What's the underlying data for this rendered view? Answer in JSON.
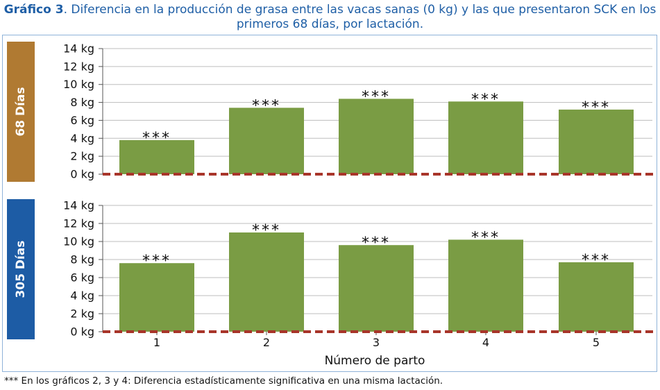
{
  "title": {
    "lead": "Gráfico 3",
    "text": ". Diferencia en la producción de grasa entre las vacas sanas (0 kg) y las que presentaron SCK en los primeros 68 días, por lactación."
  },
  "footnote": "*** En los gráficos 2, 3 y 4: Diferencia estadísticamente significativa en una misma lactación.",
  "colors": {
    "bar": "#7a9c44",
    "reference_line": "#a8352a",
    "panel_68": "#b07a32",
    "panel_305": "#1d5ca5",
    "title": "#1f5fa6"
  },
  "chart_data": [
    {
      "type": "bar",
      "panel_label": "68 Días",
      "categories": [
        "1",
        "2",
        "3",
        "4",
        "5"
      ],
      "values": [
        3.8,
        7.4,
        8.4,
        8.1,
        7.2
      ],
      "annotations": [
        "***",
        "***",
        "***",
        "***",
        "***"
      ],
      "yticks": [
        "0 kg",
        "2 kg",
        "4 kg",
        "6 kg",
        "8 kg",
        "10 kg",
        "12 kg",
        "14 kg"
      ],
      "ylim": [
        0,
        14
      ],
      "grid": true,
      "reference_line": 0
    },
    {
      "type": "bar",
      "panel_label": "305 Días",
      "categories": [
        "1",
        "2",
        "3",
        "4",
        "5"
      ],
      "values": [
        7.6,
        11.0,
        9.6,
        10.2,
        7.7
      ],
      "annotations": [
        "***",
        "***",
        "***",
        "***",
        "***"
      ],
      "yticks": [
        "0 kg",
        "2 kg",
        "4 kg",
        "6 kg",
        "8 kg",
        "10 kg",
        "12 kg",
        "14 kg"
      ],
      "ylim": [
        0,
        14
      ],
      "grid": true,
      "reference_line": 0,
      "xlabel": "Número de parto"
    }
  ]
}
